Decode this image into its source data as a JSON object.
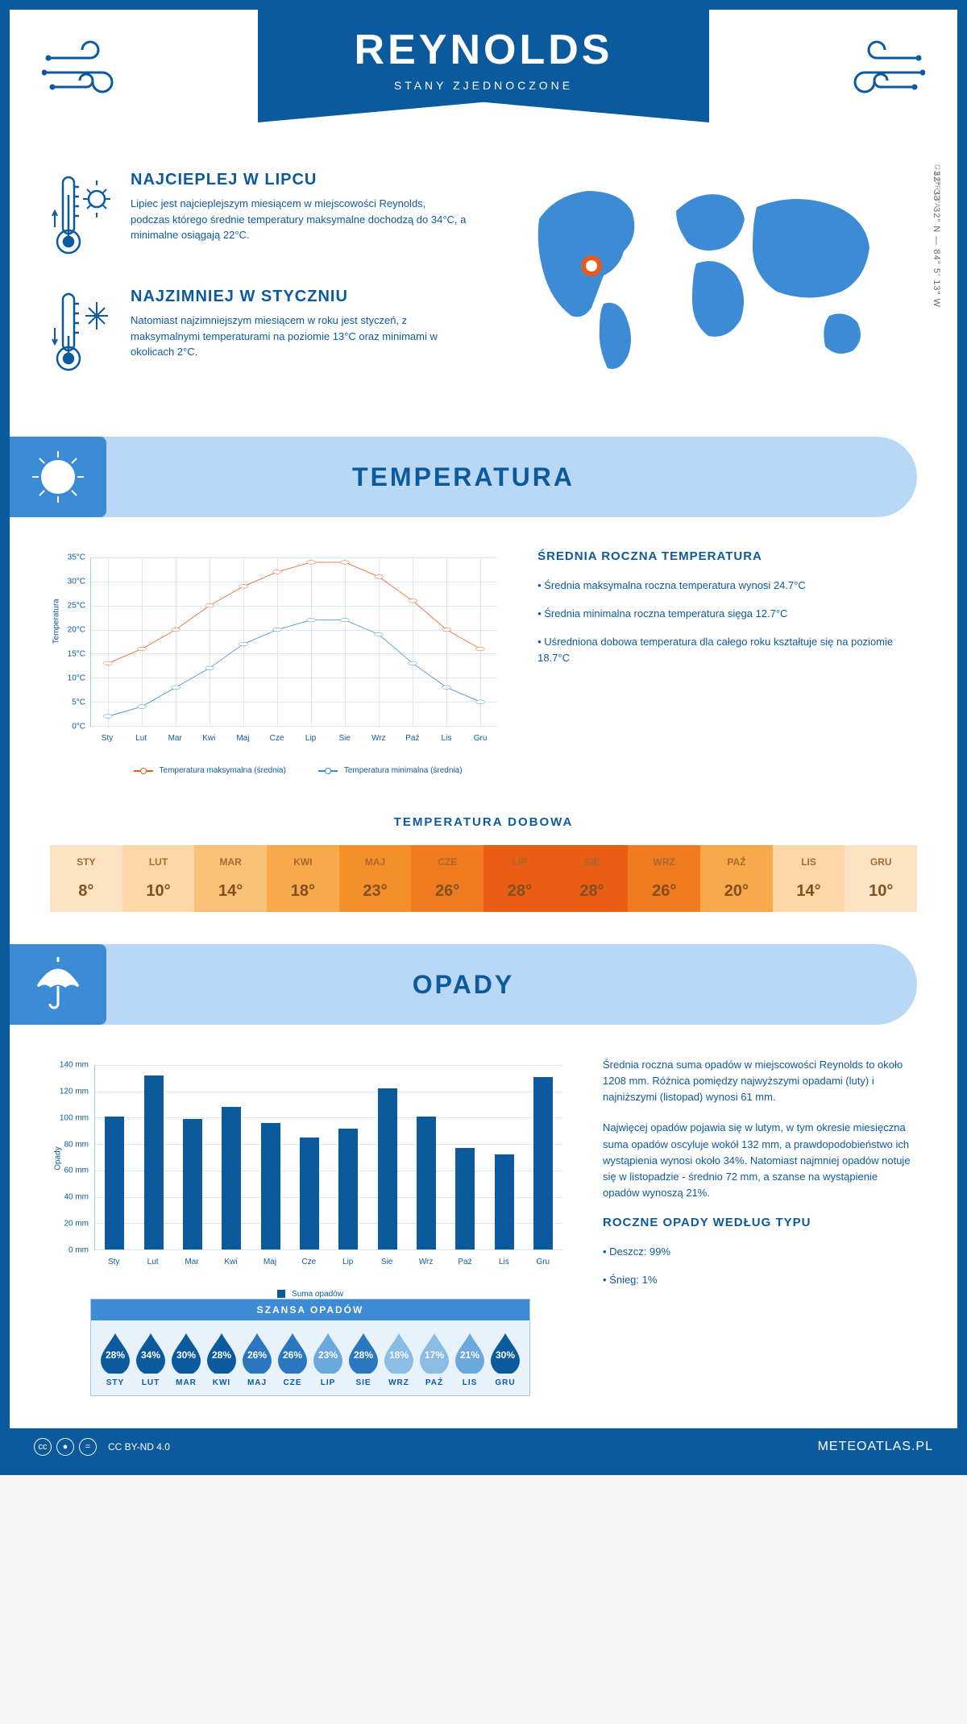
{
  "colors": {
    "brand": "#0c5a9e",
    "mid": "#3d8bd4",
    "light": "#b8d8f5",
    "max_line": "#e8591c",
    "min_line": "#3d8bd4",
    "grid": "#d8e8f5"
  },
  "header": {
    "title": "REYNOLDS",
    "subtitle": "STANY ZJEDNOCZONE"
  },
  "location": {
    "coords": "32° 33' 32\" N — 84° 5' 13\" W",
    "state": "GEORGIA"
  },
  "facts": {
    "warm": {
      "title": "NAJCIEPLEJ W LIPCU",
      "text": "Lipiec jest najcieplejszym miesiącem w miejscowości Reynolds, podczas którego średnie temperatury maksymalne dochodzą do 34°C, a minimalne osiągają 22°C."
    },
    "cold": {
      "title": "NAJZIMNIEJ W STYCZNIU",
      "text": "Natomiast najzimniejszym miesiącem w roku jest styczeń, z maksymalnymi temperaturami na poziomie 13°C oraz minimami w okolicach 2°C."
    }
  },
  "sections": {
    "temp": "TEMPERATURA",
    "precip": "OPADY"
  },
  "months": [
    "Sty",
    "Lut",
    "Mar",
    "Kwi",
    "Maj",
    "Cze",
    "Lip",
    "Sie",
    "Wrz",
    "Paź",
    "Lis",
    "Gru"
  ],
  "months_uc": [
    "STY",
    "LUT",
    "MAR",
    "KWI",
    "MAJ",
    "CZE",
    "LIP",
    "SIE",
    "WRZ",
    "PAŹ",
    "LIS",
    "GRU"
  ],
  "temp_chart": {
    "type": "line",
    "ylabel": "Temperatura",
    "ylim": [
      0,
      35
    ],
    "ytick_step": 5,
    "ytick_suffix": "°C",
    "series": {
      "max": {
        "label": "Temperatura maksymalna (średnia)",
        "color": "#e8591c",
        "values": [
          13,
          16,
          20,
          25,
          29,
          32,
          34,
          34,
          31,
          26,
          20,
          16
        ]
      },
      "min": {
        "label": "Temperatura minimalna (średnia)",
        "color": "#3d8bd4",
        "values": [
          2,
          4,
          8,
          12,
          17,
          20,
          22,
          22,
          19,
          13,
          8,
          5
        ]
      }
    }
  },
  "temp_info": {
    "heading": "ŚREDNIA ROCZNA TEMPERATURA",
    "items": [
      "• Średnia maksymalna roczna temperatura wynosi 24.7°C",
      "• Średnia minimalna roczna temperatura sięga 12.7°C",
      "• Uśredniona dobowa temperatura dla całego roku kształtuje się na poziomie 18.7°C"
    ]
  },
  "daily_temp": {
    "heading": "TEMPERATURA DOBOWA",
    "values": [
      8,
      10,
      14,
      18,
      23,
      26,
      28,
      28,
      26,
      20,
      14,
      10
    ],
    "cell_bg": [
      "#fce3c4",
      "#fbd6a6",
      "#f9c078",
      "#f7a94c",
      "#f48f2a",
      "#ef7a1f",
      "#ea5d14",
      "#ea5d14",
      "#ef7a1f",
      "#f7a94c",
      "#fbd6a6",
      "#fce3c4"
    ]
  },
  "precip_chart": {
    "type": "bar",
    "ylabel": "Opady",
    "ylim": [
      0,
      140
    ],
    "ytick_step": 20,
    "ytick_suffix": " mm",
    "values": [
      101,
      132,
      99,
      108,
      96,
      85,
      92,
      122,
      101,
      77,
      72,
      131
    ],
    "legend": "Suma opadów",
    "bar_color": "#0c5a9e"
  },
  "precip_info": {
    "p1": "Średnia roczna suma opadów w miejscowości Reynolds to około 1208 mm. Różnica pomiędzy najwyższymi opadami (luty) i najniższymi (listopad) wynosi 61 mm.",
    "p2": "Najwięcej opadów pojawia się w lutym, w tym okresie miesięczna suma opadów oscyluje wokół 132 mm, a prawdopodobieństwo ich wystąpienia wynosi około 34%. Natomiast najmniej opadów notuje się w listopadzie - średnio 72 mm, a szanse na wystąpienie opadów wynoszą 21%.",
    "type_h": "ROCZNE OPADY WEDŁUG TYPU",
    "type_items": [
      "• Deszcz: 99%",
      "• Śnieg: 1%"
    ]
  },
  "chance": {
    "heading": "SZANSA OPADÓW",
    "values": [
      28,
      34,
      30,
      28,
      26,
      26,
      23,
      28,
      18,
      17,
      21,
      30
    ],
    "colors": [
      "#0c5a9e",
      "#0c5a9e",
      "#0c5a9e",
      "#0c5a9e",
      "#2a77c0",
      "#2a77c0",
      "#6ba8dc",
      "#2a77c0",
      "#8abce5",
      "#8abce5",
      "#6ba8dc",
      "#0c5a9e"
    ]
  },
  "footer": {
    "license": "CC BY-ND 4.0",
    "site": "METEOATLAS.PL"
  }
}
